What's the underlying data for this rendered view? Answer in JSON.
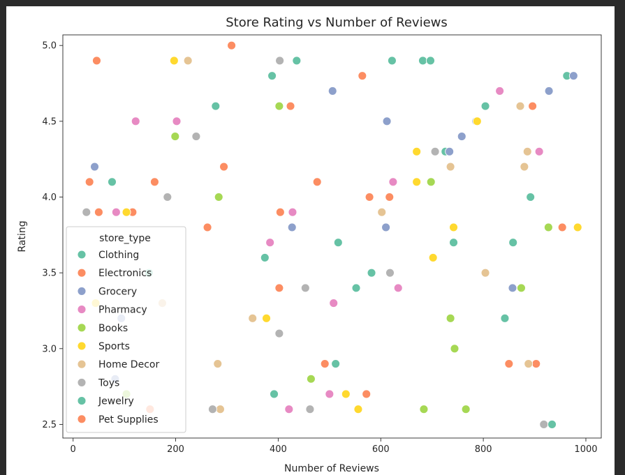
{
  "chart_data": {
    "type": "scatter",
    "title": "Store Rating vs Number of Reviews",
    "xlabel": "Number of Reviews",
    "ylabel": "Rating",
    "xlim": [
      -20,
      1030
    ],
    "ylim": [
      2.41,
      5.07
    ],
    "xticks": [
      "0",
      "200",
      "400",
      "600",
      "800",
      "1000"
    ],
    "xtick_values": [
      0,
      200,
      400,
      600,
      800,
      1000
    ],
    "yticks": [
      "2.5",
      "3.0",
      "3.5",
      "4.0",
      "4.5",
      "5.0"
    ],
    "ytick_values": [
      2.5,
      3.0,
      3.5,
      4.0,
      4.5,
      5.0
    ],
    "grid": false,
    "legend": {
      "title": "store_type",
      "placement": "bottom-left"
    },
    "series": [
      {
        "name": "Clothing",
        "color": "#66c2a5",
        "points": [
          [
            278,
            4.6
          ],
          [
            388,
            4.8
          ],
          [
            374,
            3.6
          ],
          [
            517,
            3.7
          ],
          [
            582,
            3.5
          ],
          [
            622,
            4.9
          ],
          [
            682,
            4.9
          ],
          [
            697,
            4.9
          ],
          [
            726,
            4.3
          ],
          [
            742,
            3.7
          ],
          [
            804,
            4.6
          ],
          [
            858,
            3.7
          ],
          [
            892,
            4.0
          ],
          [
            842,
            3.2
          ],
          [
            963,
            4.8
          ],
          [
            76,
            4.1
          ],
          [
            512,
            2.9
          ],
          [
            436,
            4.9
          ]
        ]
      },
      {
        "name": "Electronics",
        "color": "#fc8d62",
        "points": [
          [
            46,
            4.9
          ],
          [
            32,
            4.1
          ],
          [
            50,
            3.9
          ],
          [
            116,
            3.9
          ],
          [
            159,
            4.1
          ],
          [
            262,
            3.8
          ],
          [
            294,
            4.2
          ],
          [
            309,
            5.0
          ],
          [
            404,
            3.9
          ],
          [
            424,
            4.6
          ],
          [
            476,
            4.1
          ],
          [
            564,
            4.8
          ],
          [
            578,
            4.0
          ],
          [
            617,
            4.0
          ],
          [
            850,
            2.9
          ],
          [
            896,
            4.6
          ],
          [
            903,
            2.9
          ],
          [
            954,
            3.8
          ],
          [
            402,
            3.4
          ],
          [
            491,
            2.9
          ],
          [
            572,
            2.7
          ]
        ]
      },
      {
        "name": "Grocery",
        "color": "#8da0cb",
        "points": [
          [
            42,
            4.2
          ],
          [
            427,
            3.8
          ],
          [
            506,
            4.7
          ],
          [
            610,
            3.8
          ],
          [
            612,
            4.5
          ],
          [
            734,
            4.3
          ],
          [
            758,
            4.4
          ],
          [
            786,
            4.5
          ],
          [
            857,
            3.4
          ],
          [
            928,
            4.7
          ],
          [
            976,
            4.8
          ],
          [
            94,
            3.2
          ],
          [
            82,
            2.8
          ]
        ]
      },
      {
        "name": "Pharmacy",
        "color": "#e78ac3",
        "points": [
          [
            122,
            4.5
          ],
          [
            202,
            4.5
          ],
          [
            84,
            3.9
          ],
          [
            384,
            3.7
          ],
          [
            428,
            3.9
          ],
          [
            508,
            3.3
          ],
          [
            624,
            4.1
          ],
          [
            634,
            3.4
          ],
          [
            832,
            4.7
          ],
          [
            909,
            4.3
          ],
          [
            500,
            2.7
          ],
          [
            421,
            2.6
          ]
        ]
      },
      {
        "name": "Books",
        "color": "#a6d854",
        "points": [
          [
            199,
            4.4
          ],
          [
            284,
            4.0
          ],
          [
            402,
            4.6
          ],
          [
            698,
            4.1
          ],
          [
            736,
            3.2
          ],
          [
            744,
            3.0
          ],
          [
            874,
            3.4
          ],
          [
            927,
            3.8
          ],
          [
            464,
            2.8
          ],
          [
            684,
            2.6
          ],
          [
            766,
            2.6
          ],
          [
            104,
            2.7
          ]
        ]
      },
      {
        "name": "Sports",
        "color": "#ffd92f",
        "points": [
          [
            197,
            4.9
          ],
          [
            104,
            3.9
          ],
          [
            377,
            3.2
          ],
          [
            532,
            2.7
          ],
          [
            556,
            2.6
          ],
          [
            670,
            4.3
          ],
          [
            670,
            4.1
          ],
          [
            702,
            3.6
          ],
          [
            742,
            3.8
          ],
          [
            788,
            4.5
          ],
          [
            984,
            3.8
          ],
          [
            44,
            3.3
          ]
        ]
      },
      {
        "name": "Home Decor",
        "color": "#e5c494",
        "points": [
          [
            224,
            4.9
          ],
          [
            282,
            2.9
          ],
          [
            287,
            2.6
          ],
          [
            350,
            3.2
          ],
          [
            602,
            3.9
          ],
          [
            736,
            4.2
          ],
          [
            804,
            3.5
          ],
          [
            872,
            4.6
          ],
          [
            880,
            4.2
          ],
          [
            886,
            4.3
          ],
          [
            888,
            2.9
          ],
          [
            174,
            3.3
          ]
        ]
      },
      {
        "name": "Toys",
        "color": "#b3b3b3",
        "points": [
          [
            26,
            3.9
          ],
          [
            184,
            4.0
          ],
          [
            240,
            4.4
          ],
          [
            272,
            2.6
          ],
          [
            403,
            4.9
          ],
          [
            402,
            3.1
          ],
          [
            453,
            3.4
          ],
          [
            462,
            2.6
          ],
          [
            618,
            3.5
          ],
          [
            706,
            4.3
          ],
          [
            918,
            2.5
          ]
        ]
      },
      {
        "name": "Jewelry",
        "color": "#66c2a5",
        "points": [
          [
            392,
            2.7
          ],
          [
            552,
            3.4
          ],
          [
            934,
            2.5
          ],
          [
            148,
            3.5
          ]
        ]
      },
      {
        "name": "Pet Supplies",
        "color": "#fc8d62",
        "points": [
          [
            150,
            2.6
          ]
        ]
      }
    ]
  }
}
